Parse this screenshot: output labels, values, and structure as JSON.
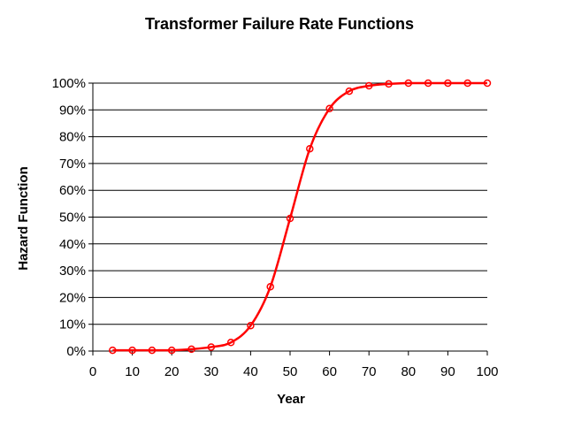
{
  "chart_data": {
    "type": "line",
    "title": "Transformer Failure Rate Functions",
    "xlabel": "Year",
    "ylabel": "Hazard Function",
    "xlim": [
      0,
      100
    ],
    "ylim": [
      0,
      100
    ],
    "x_ticks": [
      0,
      10,
      20,
      30,
      40,
      50,
      60,
      70,
      80,
      90,
      100
    ],
    "y_ticks": [
      0,
      10,
      20,
      30,
      40,
      50,
      60,
      70,
      80,
      90,
      100
    ],
    "y_tick_format": "percent",
    "grid": "horizontal",
    "legend": "none",
    "series": [
      {
        "color": "#ff0000",
        "marker": "open-circle",
        "smooth": true,
        "x": [
          5,
          10,
          15,
          20,
          25,
          30,
          35,
          40,
          45,
          50,
          55,
          60,
          65,
          70,
          75,
          80,
          85,
          90,
          95,
          100
        ],
        "values": [
          0.3,
          0.3,
          0.3,
          0.3,
          0.7,
          1.5,
          3.2,
          9.5,
          24,
          49.5,
          75.5,
          90.5,
          97,
          99,
          99.7,
          100,
          100,
          100,
          100,
          100
        ]
      }
    ]
  }
}
